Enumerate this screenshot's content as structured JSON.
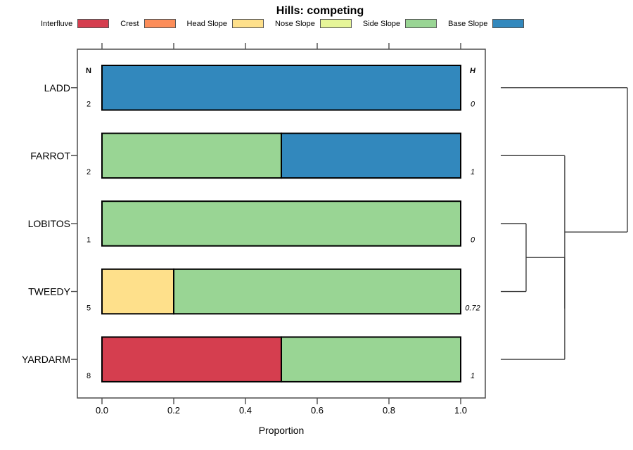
{
  "chart_data": {
    "type": "bar",
    "variant": "horizontal-stacked-proportion",
    "title": "Hills: competing",
    "xlabel": "Proportion",
    "xlim": [
      0,
      1
    ],
    "x_ticks": [
      "0.0",
      "0.2",
      "0.4",
      "0.6",
      "0.8",
      "1.0"
    ],
    "legend_position": "top",
    "categories": [
      "LADD",
      "FARROT",
      "LOBITOS",
      "TWEEDY",
      "YARDARM"
    ],
    "n_header": "N",
    "h_header": "H",
    "n_values": [
      "2",
      "2",
      "1",
      "5",
      "8"
    ],
    "h_values": [
      "0",
      "1",
      "0",
      "0.72",
      "1"
    ],
    "series": [
      {
        "name": "Interfluve",
        "color": "#D53E4F",
        "values": [
          0,
          0,
          0,
          0,
          0.5
        ]
      },
      {
        "name": "Crest",
        "color": "#FC8D59",
        "values": [
          0,
          0,
          0,
          0,
          0
        ]
      },
      {
        "name": "Head Slope",
        "color": "#FEE08B",
        "values": [
          0,
          0,
          0,
          0.2,
          0
        ]
      },
      {
        "name": "Nose Slope",
        "color": "#E6F598",
        "values": [
          0,
          0,
          0,
          0,
          0
        ]
      },
      {
        "name": "Side Slope",
        "color": "#99D594",
        "values": [
          0,
          0.5,
          1,
          0.8,
          0.5
        ]
      },
      {
        "name": "Base Slope",
        "color": "#3288BD",
        "values": [
          1,
          0.5,
          0,
          0,
          0
        ]
      }
    ],
    "dendrogram": {
      "axis": "right",
      "leaf_order": [
        "LADD",
        "FARROT",
        "LOBITOS",
        "TWEEDY",
        "YARDARM"
      ],
      "merges": [
        {
          "id": "m1",
          "a": "LOBITOS",
          "b": "TWEEDY",
          "height": 0.2
        },
        {
          "id": "m2",
          "a": "m1",
          "b": "YARDARM",
          "height": 0.505
        },
        {
          "id": "m3",
          "a": "FARROT",
          "b": "m2",
          "height": 0.505
        },
        {
          "id": "m4",
          "a": "LADD",
          "b": "m3",
          "height": 1.0
        }
      ]
    },
    "colors": {
      "frame": "#4d4d4d",
      "bar_border": "#000000",
      "dendrogram": "#333333",
      "text": "#000000"
    }
  }
}
